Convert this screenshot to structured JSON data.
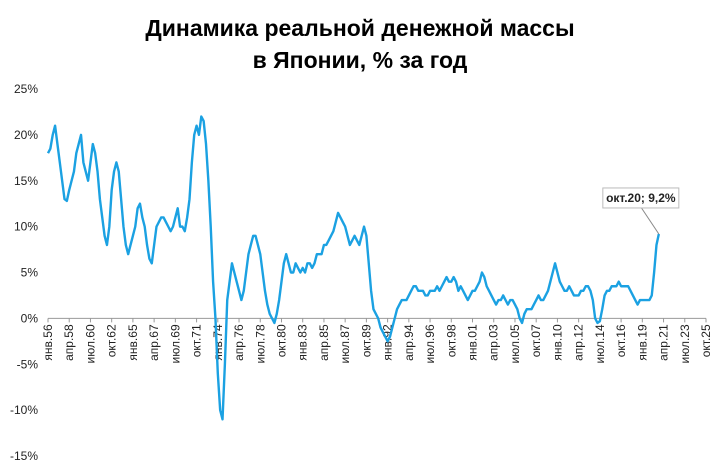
{
  "chart_data": {
    "type": "line",
    "title": "Динамика реальной денежной массы",
    "subtitle": "в Японии, % за год",
    "color": "#1ba1e2",
    "grid": false,
    "ylim": [
      -15,
      25
    ],
    "yticks": [
      {
        "value": -15,
        "label": "-15%"
      },
      {
        "value": -10,
        "label": "-10%"
      },
      {
        "value": -5,
        "label": "-5%"
      },
      {
        "value": 0,
        "label": "0%"
      },
      {
        "value": 5,
        "label": "5%"
      },
      {
        "value": 10,
        "label": "10%"
      },
      {
        "value": 15,
        "label": "15%"
      },
      {
        "value": 20,
        "label": "20%"
      },
      {
        "value": 25,
        "label": "25%"
      }
    ],
    "annotation": "окт.20; 9,2%",
    "categories": [
      "янв.56",
      null,
      null,
      null,
      null,
      null,
      null,
      null,
      null,
      "апр.58",
      null,
      null,
      null,
      null,
      null,
      null,
      null,
      null,
      "июл.60",
      null,
      null,
      null,
      null,
      null,
      null,
      null,
      null,
      "окт.62",
      null,
      null,
      null,
      null,
      null,
      null,
      null,
      null,
      "янв.65",
      null,
      null,
      null,
      null,
      null,
      null,
      null,
      null,
      "апр.67",
      null,
      null,
      null,
      null,
      null,
      null,
      null,
      null,
      "июл.69",
      null,
      null,
      null,
      null,
      null,
      null,
      null,
      null,
      "окт.71",
      null,
      null,
      null,
      null,
      null,
      null,
      null,
      null,
      "янв.74",
      null,
      null,
      null,
      null,
      null,
      null,
      null,
      null,
      "апр.76",
      null,
      null,
      null,
      null,
      null,
      null,
      null,
      null,
      "июл.78",
      null,
      null,
      null,
      null,
      null,
      null,
      null,
      null,
      "окт.80",
      null,
      null,
      null,
      null,
      null,
      null,
      null,
      null,
      "янв.83",
      null,
      null,
      null,
      null,
      null,
      null,
      null,
      null,
      "апр.85",
      null,
      null,
      null,
      null,
      null,
      null,
      null,
      null,
      "июл.87",
      null,
      null,
      null,
      null,
      null,
      null,
      null,
      null,
      "окт.89",
      null,
      null,
      null,
      null,
      null,
      null,
      null,
      null,
      "янв.92",
      null,
      null,
      null,
      null,
      null,
      null,
      null,
      null,
      "апр.94",
      null,
      null,
      null,
      null,
      null,
      null,
      null,
      null,
      "июл.96",
      null,
      null,
      null,
      null,
      null,
      null,
      null,
      null,
      "окт.98",
      null,
      null,
      null,
      null,
      null,
      null,
      null,
      null,
      "янв.01",
      null,
      null,
      null,
      null,
      null,
      null,
      null,
      null,
      "апр.03",
      null,
      null,
      null,
      null,
      null,
      null,
      null,
      null,
      "июл.05",
      null,
      null,
      null,
      null,
      null,
      null,
      null,
      null,
      "окт.07",
      null,
      null,
      null,
      null,
      null,
      null,
      null,
      null,
      "янв.10",
      null,
      null,
      null,
      null,
      null,
      null,
      null,
      null,
      "апр.12",
      null,
      null,
      null,
      null,
      null,
      null,
      null,
      null,
      "июл.14",
      null,
      null,
      null,
      null,
      null,
      null,
      null,
      null,
      "окт.16",
      null,
      null,
      null,
      null,
      null,
      null,
      null,
      null,
      "янв.19",
      null,
      null,
      null,
      null,
      null,
      null,
      null,
      null,
      "апр.21",
      null,
      null,
      null,
      null,
      null,
      null,
      null,
      null,
      "июл.23",
      null,
      null,
      null,
      null,
      null,
      null,
      null,
      null,
      "окт.25"
    ],
    "values": [
      18,
      18.5,
      20,
      21,
      19,
      17,
      15,
      13,
      12.8,
      14,
      15,
      16,
      18,
      19,
      20,
      17,
      16,
      15,
      17,
      19,
      18,
      16,
      13,
      11,
      9,
      8,
      10,
      14,
      16,
      17,
      16,
      13,
      10,
      8,
      7,
      8,
      9,
      10,
      12,
      12.5,
      11,
      10,
      8,
      6.5,
      6,
      8,
      10,
      10.5,
      11,
      11,
      10.5,
      10,
      9.5,
      10,
      11,
      12,
      10,
      10,
      9.5,
      11,
      13,
      17,
      20,
      21,
      20,
      22,
      21.5,
      19,
      15,
      10,
      4,
      0,
      -6,
      -10,
      -11,
      -5,
      2,
      4,
      6,
      5,
      4,
      3,
      2,
      3,
      5,
      7,
      8,
      9,
      9,
      8,
      7,
      5,
      3,
      1.5,
      0.5,
      0,
      -0.5,
      0.5,
      2,
      4,
      6,
      7,
      6,
      5,
      5,
      6,
      5.5,
      5,
      5.5,
      5,
      6,
      6,
      5.5,
      6,
      7,
      7,
      7,
      8,
      8,
      8.5,
      9,
      9.5,
      10.5,
      11.5,
      11,
      10.5,
      10,
      9,
      8,
      8.5,
      9,
      8.5,
      8,
      9,
      10,
      9,
      6,
      3,
      1,
      0.5,
      0,
      -1,
      -1.5,
      -2,
      -2.5,
      -2,
      -1,
      0,
      1,
      1.5,
      2,
      2,
      2,
      2.5,
      3,
      3.5,
      3.5,
      3,
      3,
      3,
      2.5,
      2.5,
      3,
      3,
      3,
      3.5,
      3,
      3.5,
      4,
      4.5,
      4,
      4,
      4.5,
      4,
      3,
      3.5,
      3,
      2.5,
      2,
      2.5,
      3,
      3,
      3.5,
      4,
      5,
      4.5,
      3.5,
      3,
      2.5,
      2,
      1.5,
      2,
      2,
      2.5,
      2,
      1.5,
      2,
      2,
      1.5,
      1,
      0,
      -0.5,
      0.5,
      1,
      1,
      1,
      1.5,
      2,
      2.5,
      2,
      2,
      2.5,
      3,
      4,
      5,
      6,
      5,
      4,
      3.5,
      3,
      3,
      3.5,
      3,
      2.5,
      2.5,
      2.5,
      3,
      3,
      3.5,
      3.5,
      3,
      2,
      0,
      -0.5,
      -0.3,
      1,
      2.5,
      3,
      3,
      3.5,
      3.5,
      3.5,
      4,
      3.5,
      3.5,
      3.5,
      3.5,
      3,
      2.5,
      2,
      1.5,
      2,
      2,
      2,
      2,
      2,
      2.5,
      5,
      8,
      9.2,
      null,
      null,
      null,
      null,
      null,
      null,
      null,
      null,
      null,
      null,
      null,
      null,
      null,
      null,
      null,
      null,
      null,
      null,
      null,
      null
    ]
  }
}
